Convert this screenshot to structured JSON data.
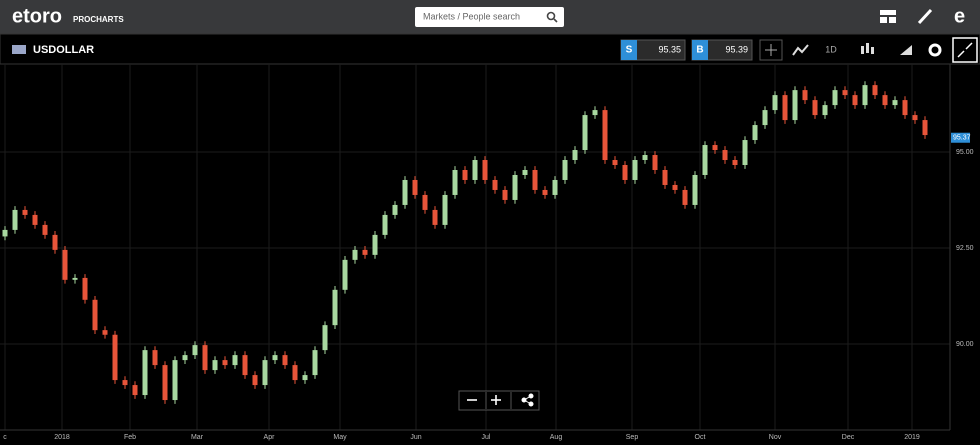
{
  "header": {
    "logo": "etoro",
    "logo_sub": "PROCHARTS",
    "search_placeholder": "Markets / People search"
  },
  "toolbar": {
    "instrument": "USDOLLAR",
    "sell_label": "S",
    "sell_price": 95.35,
    "buy_label": "B",
    "buy_price": 95.39,
    "timeframe": "1D"
  },
  "chart_data": {
    "type": "candlestick",
    "open": [
      92.8,
      92.97,
      93.49,
      93.36,
      93.1,
      92.84,
      92.45,
      91.67,
      91.72,
      91.15,
      90.36,
      90.24,
      89.06,
      88.93,
      88.67,
      89.84,
      89.45,
      88.54,
      89.58,
      89.71,
      89.97,
      89.32,
      89.58,
      89.45,
      89.71,
      89.19,
      88.93,
      89.58,
      89.71,
      89.45,
      89.06,
      89.19,
      89.84,
      90.49,
      91.41,
      92.19,
      92.45,
      92.32,
      92.84,
      93.36,
      93.62,
      94.27,
      93.88,
      93.49,
      93.1,
      93.88,
      94.53,
      94.27,
      94.79,
      94.27,
      94.01,
      93.75,
      94.4,
      94.53,
      94.01,
      93.88,
      94.27,
      94.79,
      95.05,
      95.96,
      96.09,
      94.79,
      94.66,
      94.27,
      94.79,
      94.92,
      94.53,
      94.14,
      94.01,
      93.62,
      94.4,
      95.18,
      95.05,
      94.79,
      94.66,
      95.31,
      95.7,
      96.09,
      96.48,
      95.83,
      96.61,
      96.35,
      95.96,
      96.22,
      96.61,
      96.48,
      96.22,
      96.74,
      96.48,
      96.22,
      96.35,
      95.96,
      95.83
    ],
    "high": [
      93.07,
      93.59,
      93.59,
      93.46,
      93.2,
      92.94,
      92.55,
      91.82,
      91.82,
      91.25,
      90.46,
      90.34,
      89.16,
      89.03,
      89.94,
      89.94,
      89.55,
      89.68,
      89.81,
      90.07,
      90.07,
      89.68,
      89.68,
      89.81,
      89.81,
      89.29,
      89.68,
      89.81,
      89.81,
      89.55,
      89.29,
      89.94,
      90.59,
      91.51,
      92.29,
      92.55,
      92.55,
      92.94,
      93.46,
      93.72,
      94.37,
      94.37,
      93.98,
      93.59,
      93.98,
      94.63,
      94.63,
      94.89,
      94.89,
      94.37,
      94.11,
      94.5,
      94.63,
      94.63,
      94.11,
      94.37,
      94.89,
      95.15,
      96.06,
      96.19,
      96.19,
      94.89,
      94.76,
      94.89,
      95.02,
      95.02,
      94.63,
      94.24,
      94.11,
      94.5,
      95.28,
      95.28,
      95.15,
      94.89,
      95.41,
      95.8,
      96.19,
      96.58,
      96.58,
      96.71,
      96.71,
      96.45,
      96.32,
      96.71,
      96.71,
      96.58,
      96.84,
      96.84,
      96.58,
      96.45,
      96.45,
      96.06,
      95.93
    ],
    "low": [
      92.7,
      92.87,
      93.26,
      93.0,
      92.74,
      92.35,
      91.57,
      91.57,
      91.05,
      90.26,
      90.14,
      88.96,
      88.83,
      88.57,
      88.57,
      89.35,
      88.44,
      88.44,
      89.48,
      89.61,
      89.22,
      89.22,
      89.35,
      89.35,
      89.09,
      88.83,
      88.83,
      89.48,
      89.35,
      88.96,
      88.96,
      89.09,
      89.74,
      90.39,
      91.31,
      92.09,
      92.22,
      92.22,
      92.74,
      93.26,
      93.52,
      93.78,
      93.39,
      93.0,
      93.0,
      93.78,
      94.17,
      94.17,
      94.17,
      93.91,
      93.65,
      93.65,
      94.3,
      93.91,
      93.78,
      93.78,
      94.17,
      94.69,
      94.95,
      95.86,
      94.69,
      94.56,
      94.17,
      94.17,
      94.69,
      94.43,
      94.04,
      93.91,
      93.52,
      93.52,
      94.3,
      94.95,
      94.69,
      94.56,
      94.56,
      95.21,
      95.6,
      95.99,
      95.73,
      95.73,
      96.25,
      95.86,
      95.86,
      96.12,
      96.38,
      96.12,
      96.12,
      96.38,
      96.12,
      96.12,
      95.86,
      95.73,
      95.34
    ],
    "close": [
      92.97,
      93.49,
      93.36,
      93.1,
      92.84,
      92.45,
      91.67,
      91.72,
      91.15,
      90.36,
      90.24,
      89.06,
      88.93,
      88.67,
      89.84,
      89.45,
      88.54,
      89.58,
      89.71,
      89.97,
      89.32,
      89.58,
      89.45,
      89.71,
      89.19,
      88.93,
      89.58,
      89.71,
      89.45,
      89.06,
      89.19,
      89.84,
      90.49,
      91.41,
      92.19,
      92.45,
      92.32,
      92.84,
      93.36,
      93.62,
      94.27,
      93.88,
      93.49,
      93.1,
      93.88,
      94.53,
      94.27,
      94.79,
      94.27,
      94.01,
      93.75,
      94.4,
      94.53,
      94.01,
      93.88,
      94.27,
      94.79,
      95.05,
      95.96,
      96.09,
      94.79,
      94.66,
      94.27,
      94.79,
      94.92,
      94.53,
      94.14,
      94.01,
      93.62,
      94.4,
      95.18,
      95.05,
      94.79,
      94.66,
      95.31,
      95.7,
      96.09,
      96.48,
      95.83,
      96.61,
      96.35,
      95.96,
      96.22,
      96.61,
      96.48,
      96.22,
      96.74,
      96.48,
      96.22,
      96.35,
      95.96,
      95.83,
      95.44
    ],
    "xlim": [
      -0.5,
      94.5
    ],
    "xticks": [
      {
        "value": 0,
        "label": "c"
      },
      {
        "value": 5.7,
        "label": "2018"
      },
      {
        "value": 12.5,
        "label": "Feb"
      },
      {
        "value": 19.2,
        "label": "Mar"
      },
      {
        "value": 26.4,
        "label": "Apr"
      },
      {
        "value": 33.5,
        "label": "May"
      },
      {
        "value": 41.1,
        "label": "Jun"
      },
      {
        "value": 48.1,
        "label": "Jul"
      },
      {
        "value": 55.1,
        "label": "Aug"
      },
      {
        "value": 62.7,
        "label": "Sep"
      },
      {
        "value": 69.5,
        "label": "Oct"
      },
      {
        "value": 77,
        "label": "Nov"
      },
      {
        "value": 84.3,
        "label": "Dec"
      },
      {
        "value": 90.7,
        "label": "2019"
      }
    ],
    "ylim": [
      87.76,
      97.29
    ],
    "yticks": [
      {
        "value": 90,
        "label": "90.00"
      },
      {
        "value": 92.5,
        "label": "92.50"
      },
      {
        "value": 95,
        "label": "95.00"
      }
    ],
    "last_price": 95.37,
    "up_color": "#a8d8a0",
    "down_color": "#e8553a",
    "grid": true
  }
}
